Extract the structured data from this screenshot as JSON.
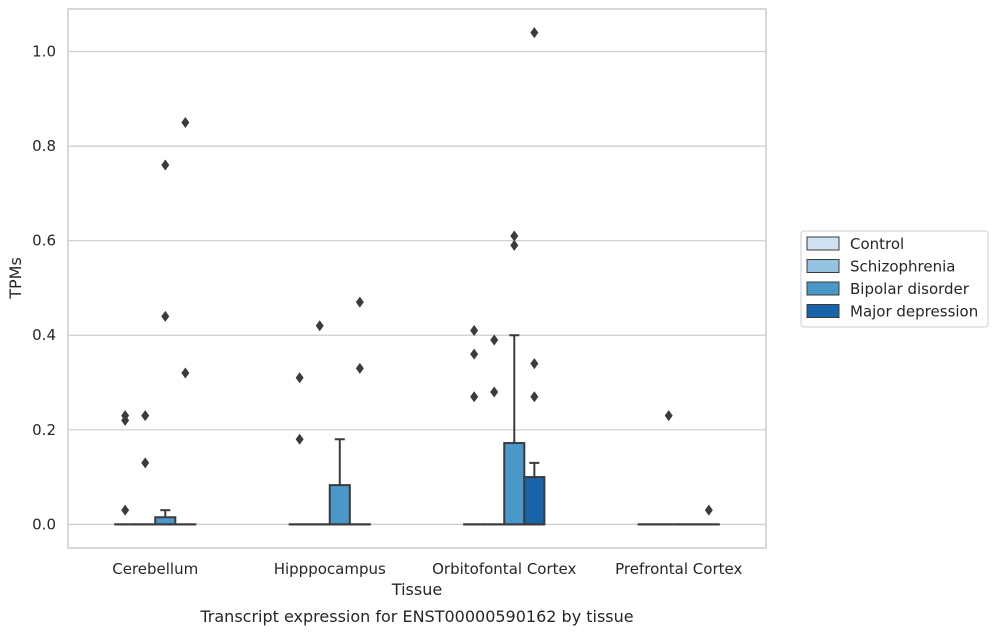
{
  "chart_data": {
    "type": "box",
    "caption": "Transcript expression for ENST00000590162 by tissue",
    "xlabel": "Tissue",
    "ylabel": "TPMs",
    "ylim": [
      -0.05,
      1.09
    ],
    "yticks": [
      0.0,
      0.2,
      0.4,
      0.6,
      0.8,
      1.0
    ],
    "ytick_labels": [
      "0.0",
      "0.2",
      "0.4",
      "0.6",
      "0.8",
      "1.0"
    ],
    "grid": "horizontal",
    "legend_position": "right",
    "categories": [
      "Cerebellum",
      "Hipppocampus",
      "Orbitofontal Cortex",
      "Prefrontal Cortex"
    ],
    "series": [
      {
        "name": "Control",
        "color": "#d0e1f2",
        "boxes": [
          {
            "q1": 0,
            "median": 0,
            "q3": 0,
            "whisker_low": 0,
            "whisker_high": 0,
            "outliers": [
              0.03,
              0.22,
              0.23
            ]
          },
          {
            "q1": 0,
            "median": 0,
            "q3": 0,
            "whisker_low": 0,
            "whisker_high": 0,
            "outliers": [
              0.18,
              0.31
            ]
          },
          {
            "q1": 0,
            "median": 0,
            "q3": 0,
            "whisker_low": 0,
            "whisker_high": 0,
            "outliers": [
              0.27,
              0.36,
              0.41
            ]
          },
          {
            "q1": 0,
            "median": 0,
            "q3": 0,
            "whisker_low": 0,
            "whisker_high": 0,
            "outliers": []
          }
        ]
      },
      {
        "name": "Schizophrenia",
        "color": "#94c4df",
        "boxes": [
          {
            "q1": 0,
            "median": 0,
            "q3": 0,
            "whisker_low": 0,
            "whisker_high": 0,
            "outliers": [
              0.13,
              0.23
            ]
          },
          {
            "q1": 0,
            "median": 0,
            "q3": 0,
            "whisker_low": 0,
            "whisker_high": 0,
            "outliers": [
              0.42
            ]
          },
          {
            "q1": 0,
            "median": 0,
            "q3": 0,
            "whisker_low": 0,
            "whisker_high": 0,
            "outliers": [
              0.28,
              0.39
            ]
          },
          {
            "q1": 0,
            "median": 0,
            "q3": 0,
            "whisker_low": 0,
            "whisker_high": 0,
            "outliers": [
              0.23
            ]
          }
        ]
      },
      {
        "name": "Bipolar disorder",
        "color": "#4a98c9",
        "boxes": [
          {
            "q1": 0,
            "median": 0,
            "q3": 0.015,
            "whisker_low": 0,
            "whisker_high": 0.03,
            "outliers": [
              0.44,
              0.76
            ]
          },
          {
            "q1": 0,
            "median": 0,
            "q3": 0.083,
            "whisker_low": 0,
            "whisker_high": 0.18,
            "outliers": []
          },
          {
            "q1": 0,
            "median": 0,
            "q3": 0.172,
            "whisker_low": 0,
            "whisker_high": 0.4,
            "outliers": [
              0.59,
              0.61
            ]
          },
          {
            "q1": 0,
            "median": 0,
            "q3": 0,
            "whisker_low": 0,
            "whisker_high": 0,
            "outliers": []
          }
        ]
      },
      {
        "name": "Major depression",
        "color": "#1764ab",
        "boxes": [
          {
            "q1": 0,
            "median": 0,
            "q3": 0,
            "whisker_low": 0,
            "whisker_high": 0,
            "outliers": [
              0.32,
              0.85
            ]
          },
          {
            "q1": 0,
            "median": 0,
            "q3": 0,
            "whisker_low": 0,
            "whisker_high": 0,
            "outliers": [
              0.33,
              0.47
            ]
          },
          {
            "q1": 0,
            "median": 0,
            "q3": 0.1,
            "whisker_low": 0,
            "whisker_high": 0.13,
            "outliers": [
              0.27,
              0.34,
              1.04
            ]
          },
          {
            "q1": 0,
            "median": 0,
            "q3": 0,
            "whisker_low": 0,
            "whisker_high": 0,
            "outliers": [
              0.03
            ]
          }
        ]
      }
    ]
  }
}
